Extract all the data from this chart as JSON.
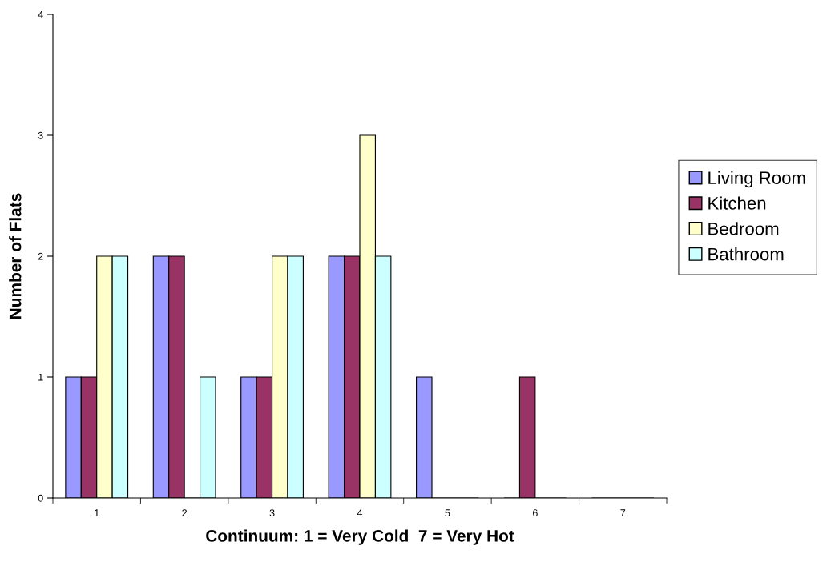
{
  "chart_data": {
    "type": "bar",
    "xlabel": "Continuum: 1 = Very Cold  7 = Very Hot",
    "ylabel": "Number of Flats",
    "categories": [
      "1",
      "2",
      "3",
      "4",
      "5",
      "6",
      "7"
    ],
    "series": [
      {
        "name": "Living Room",
        "color": "#9999ff",
        "values": [
          1,
          2,
          1,
          2,
          1,
          0,
          0
        ]
      },
      {
        "name": "Kitchen",
        "color": "#993366",
        "values": [
          1,
          2,
          1,
          2,
          0,
          1,
          0
        ]
      },
      {
        "name": "Bedroom",
        "color": "#ffffcc",
        "values": [
          2,
          0,
          2,
          3,
          0,
          0,
          0
        ]
      },
      {
        "name": "Bathroom",
        "color": "#ccffff",
        "values": [
          2,
          1,
          2,
          2,
          0,
          0,
          0
        ]
      }
    ],
    "ylim": [
      0,
      4
    ],
    "yticks": [
      0,
      1,
      2,
      3,
      4
    ],
    "grid": false,
    "legend": "right"
  }
}
